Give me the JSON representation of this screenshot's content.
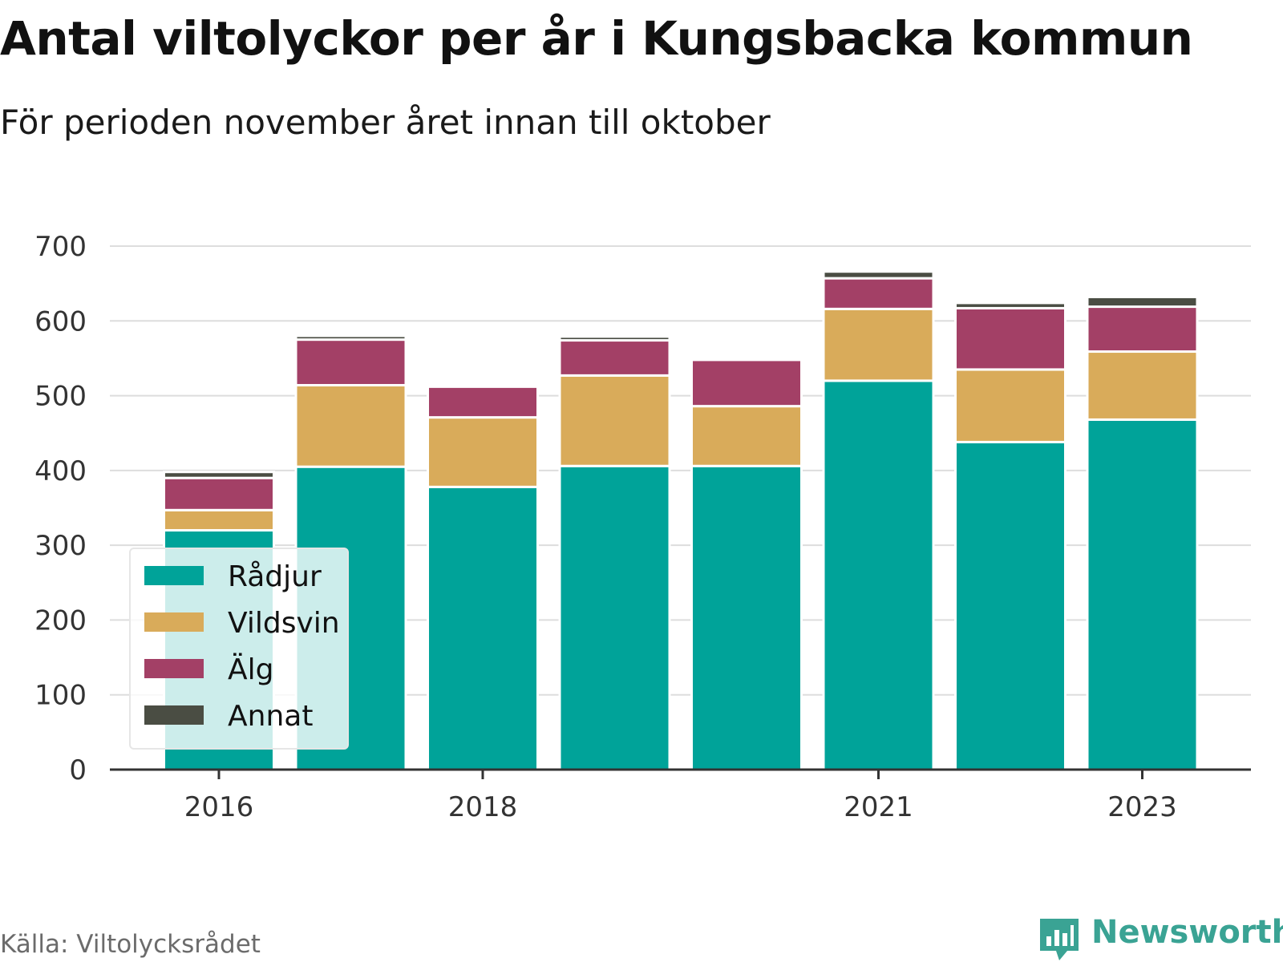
{
  "title": "Antal viltolyckor per år i Kungsbacka kommun",
  "subtitle": "För perioden november året innan till oktober",
  "source": "Källa: Viltolycksrådet",
  "brand": "Newsworthy",
  "colors": {
    "radjur": "#00a399",
    "vildsvin": "#d9ab5a",
    "alg": "#a34066",
    "annat": "#4a4d43",
    "grid": "#dddddd",
    "axis": "#333333",
    "brand": "#3aa394"
  },
  "chart_data": {
    "type": "bar",
    "stacked": true,
    "x": [
      2016,
      2017,
      2018,
      2019,
      2020,
      2021,
      2022,
      2023
    ],
    "x_tick_labels": [
      "2016",
      "2018",
      "2021",
      "2023"
    ],
    "x_tick_values": [
      2016,
      2018,
      2021,
      2023
    ],
    "y_tick_labels": [
      "0",
      "100",
      "200",
      "300",
      "400",
      "500",
      "600",
      "700"
    ],
    "ylim": [
      0,
      700
    ],
    "grid": true,
    "legend_position": "bottom-left",
    "series": [
      {
        "name": "Rådjur",
        "color": "#00a399",
        "values": [
          320,
          405,
          378,
          406,
          406,
          520,
          438,
          468
        ]
      },
      {
        "name": "Vildsvin",
        "color": "#d9ab5a",
        "values": [
          27,
          109,
          93,
          121,
          80,
          96,
          97,
          91
        ]
      },
      {
        "name": "Älg",
        "color": "#a34066",
        "values": [
          43,
          61,
          41,
          47,
          62,
          41,
          82,
          60
        ]
      },
      {
        "name": "Annat",
        "color": "#4a4d43",
        "values": [
          8,
          5,
          0,
          5,
          3,
          9,
          7,
          13
        ]
      }
    ]
  }
}
